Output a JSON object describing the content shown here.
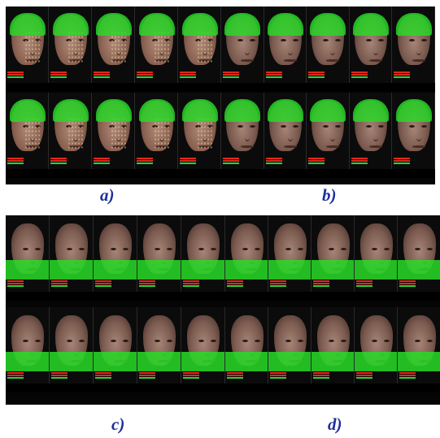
{
  "panels": [
    {
      "id": "a",
      "label": "a)",
      "overlay": "upper",
      "face_style": "dots",
      "frames_per_row": 5
    },
    {
      "id": "b",
      "label": "b)",
      "overlay": "upper",
      "face_style": "plain",
      "frames_per_row": 5
    },
    {
      "id": "c",
      "label": "c)",
      "overlay": "lower",
      "face_style": "plain",
      "frames_per_row": 5
    },
    {
      "id": "d",
      "label": "d)",
      "overlay": "lower",
      "face_style": "plain",
      "frames_per_row": 5
    }
  ],
  "colors": {
    "overlay_green": "#28dc28",
    "bar_red": "#e5261c",
    "bar_green": "#27d23a",
    "label_blue": "#1f2f9c",
    "panel_bg": "#050505"
  }
}
